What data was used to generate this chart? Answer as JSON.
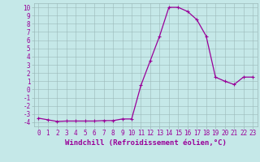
{
  "x": [
    0,
    1,
    2,
    3,
    4,
    5,
    6,
    7,
    8,
    9,
    10,
    11,
    12,
    13,
    14,
    15,
    16,
    17,
    18,
    19,
    20,
    21,
    22,
    23
  ],
  "y": [
    -3.5,
    -3.7,
    -3.9,
    -3.85,
    -3.85,
    -3.85,
    -3.85,
    -3.8,
    -3.8,
    -3.6,
    -3.6,
    0.5,
    3.5,
    6.5,
    10.0,
    10.0,
    9.5,
    8.5,
    6.5,
    1.5,
    1.0,
    0.6,
    1.5,
    1.5
  ],
  "line_color": "#990099",
  "marker": "+",
  "marker_size": 3.5,
  "marker_lw": 0.8,
  "line_width": 0.9,
  "bg_color": "#c5e8e8",
  "grid_color": "#9ab8b8",
  "xlabel": "Windchill (Refroidissement éolien,°C)",
  "xlim": [
    -0.5,
    23.5
  ],
  "ylim": [
    -4.5,
    10.5
  ],
  "xticks": [
    0,
    1,
    2,
    3,
    4,
    5,
    6,
    7,
    8,
    9,
    10,
    11,
    12,
    13,
    14,
    15,
    16,
    17,
    18,
    19,
    20,
    21,
    22,
    23
  ],
  "yticks": [
    -4,
    -3,
    -2,
    -1,
    0,
    1,
    2,
    3,
    4,
    5,
    6,
    7,
    8,
    9,
    10
  ],
  "tick_fontsize": 5.5,
  "xlabel_fontsize": 6.5
}
